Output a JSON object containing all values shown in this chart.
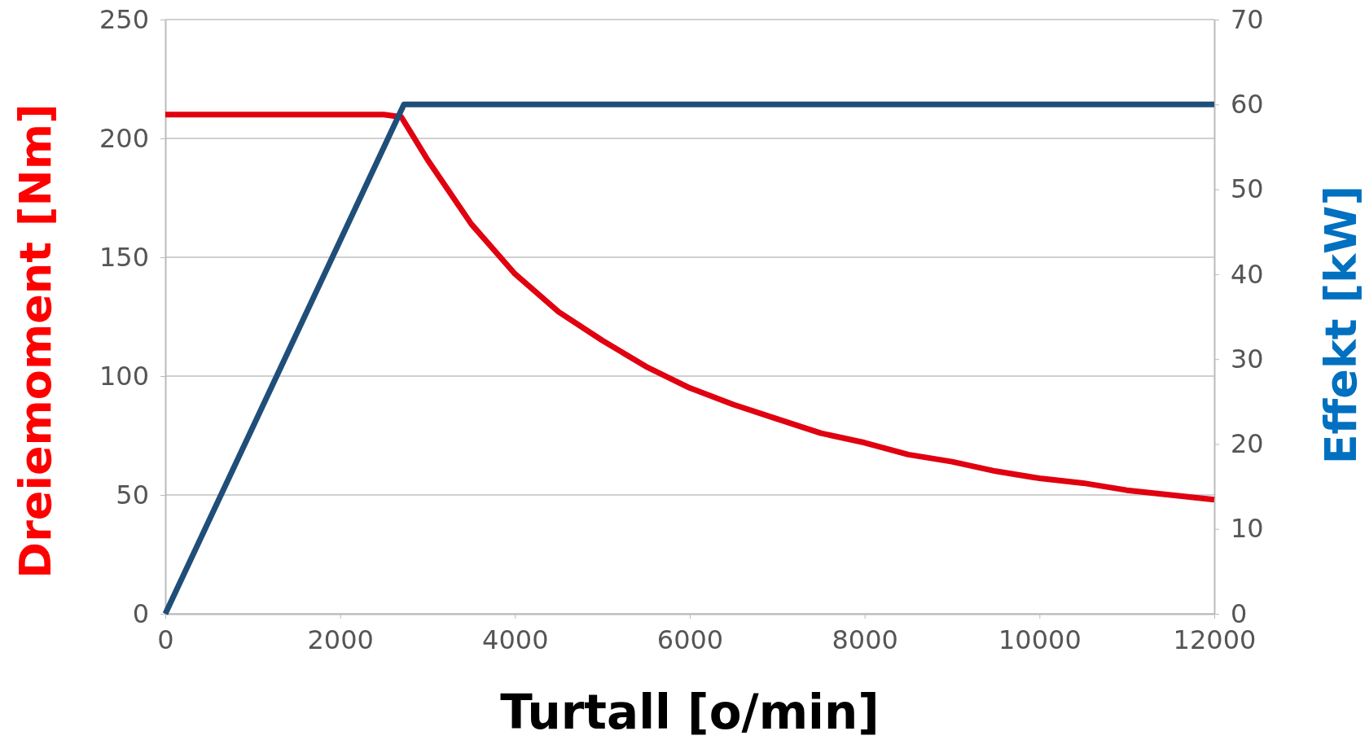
{
  "chart_data": {
    "type": "line",
    "xlabel": "Turtall [o/min]",
    "ylabel": "Dreiemoment [Nm]",
    "y2label": "Effekt [kW]",
    "xlim": [
      0,
      12000
    ],
    "xticks": [
      0,
      2000,
      4000,
      6000,
      8000,
      10000,
      12000
    ],
    "ylim": [
      0,
      250
    ],
    "yticks": [
      0,
      50,
      100,
      150,
      200,
      250
    ],
    "y2lim": [
      0,
      70
    ],
    "y2ticks": [
      0,
      10,
      20,
      30,
      40,
      50,
      60,
      70
    ],
    "grid": "y",
    "marker": "none",
    "line_style": "solid",
    "series": [
      {
        "color": "#e00010",
        "x": [
          0,
          500,
          1000,
          1500,
          2000,
          2500,
          2700,
          3000,
          3500,
          4000,
          4500,
          5000,
          5500,
          6000,
          6500,
          7000,
          7500,
          8000,
          8500,
          9000,
          9500,
          10000,
          10500,
          11000,
          11500,
          12000
        ],
        "values": [
          210,
          210,
          210,
          210,
          210,
          210,
          209,
          191,
          164,
          143,
          127,
          115,
          104,
          95,
          88,
          82,
          76,
          72,
          67,
          64,
          60,
          57,
          55,
          52,
          50,
          48
        ]
      },
      {
        "color": "#1f4e79",
        "axis": "y2",
        "x": [
          0,
          2730,
          3000,
          6000,
          9000,
          12000
        ],
        "values": [
          0,
          60,
          60,
          60,
          60,
          60
        ]
      }
    ]
  }
}
